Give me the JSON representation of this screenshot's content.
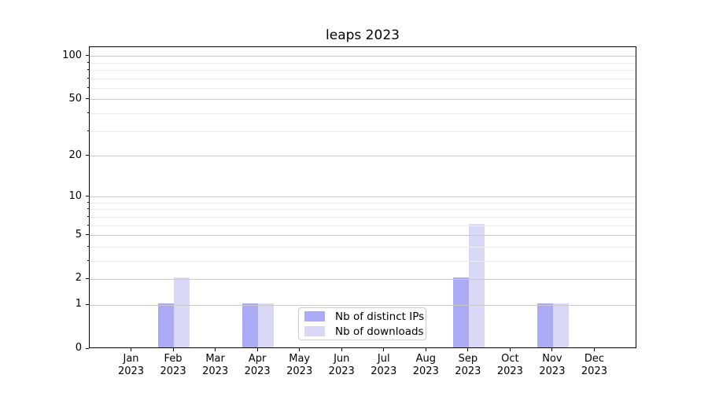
{
  "chart_data": {
    "type": "bar",
    "title": "leaps 2023",
    "categories": [
      "Jan",
      "Feb",
      "Mar",
      "Apr",
      "May",
      "Jun",
      "Jul",
      "Aug",
      "Sep",
      "Oct",
      "Nov",
      "Dec"
    ],
    "category_year": "2023",
    "series": [
      {
        "name": "Nb of distinct IPs",
        "color": "#aaaaf5",
        "values": [
          0,
          1,
          0,
          1,
          0,
          0,
          0,
          0,
          2,
          0,
          1,
          0
        ]
      },
      {
        "name": "Nb of downloads",
        "color": "#d9d9f7",
        "values": [
          0,
          2,
          0,
          1,
          0,
          0,
          0,
          0,
          6,
          0,
          1,
          0
        ]
      }
    ],
    "yscale": "log1p",
    "ylim": [
      0,
      116
    ],
    "y_major_ticks": [
      0,
      1,
      2,
      5,
      10,
      20,
      50,
      100
    ],
    "y_minor_ticks": [
      3,
      4,
      6,
      7,
      8,
      9,
      30,
      40,
      60,
      70,
      80,
      90
    ],
    "grid": true,
    "legend_position": "lower center",
    "xlabel": "",
    "ylabel": ""
  },
  "colors": {
    "background": "#ffffff",
    "spine": "#000000",
    "major_grid": "#c9c9c9",
    "minor_grid": "#ededed",
    "text": "#000000"
  }
}
